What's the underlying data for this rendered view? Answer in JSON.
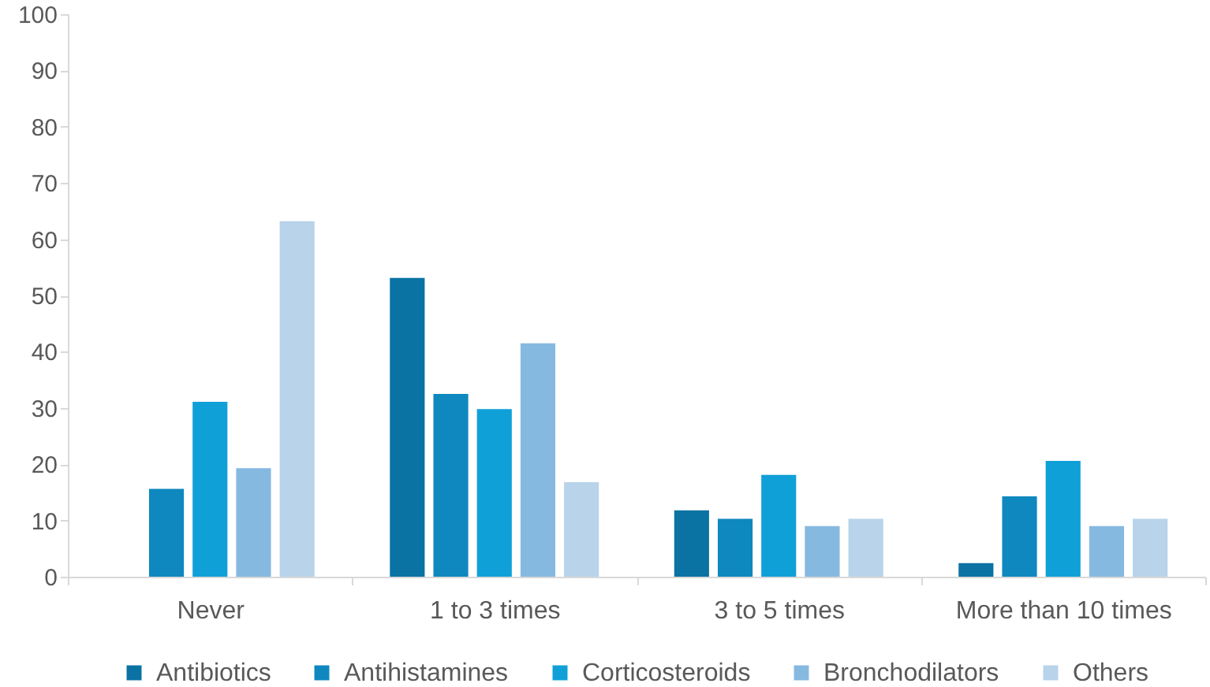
{
  "chart_data": {
    "type": "bar",
    "categories": [
      "Never",
      "1 to 3 times",
      "3 to 5 times",
      "More than 10 times"
    ],
    "series": [
      {
        "name": "Antibiotics",
        "color": "#0a73a3",
        "values": [
          null,
          53.1,
          11.8,
          2.4
        ]
      },
      {
        "name": "Antihistamines",
        "color": "#0e88bf",
        "values": [
          15.6,
          32.5,
          10.3,
          14.3
        ]
      },
      {
        "name": "Corticosteroids",
        "color": "#10a0d8",
        "values": [
          31.1,
          29.8,
          18.1,
          20.6
        ]
      },
      {
        "name": "Bronchodilators",
        "color": "#86b9e0",
        "values": [
          19.3,
          41.5,
          9.0,
          9.0
        ]
      },
      {
        "name": "Others",
        "color": "#b8d3ea",
        "values": [
          63.2,
          16.8,
          10.3,
          10.3
        ]
      }
    ],
    "ylim": [
      0,
      100
    ],
    "yticks": [
      0,
      10,
      20,
      30,
      40,
      50,
      60,
      70,
      80,
      90,
      100
    ],
    "grid": false,
    "legend": "bottom"
  }
}
